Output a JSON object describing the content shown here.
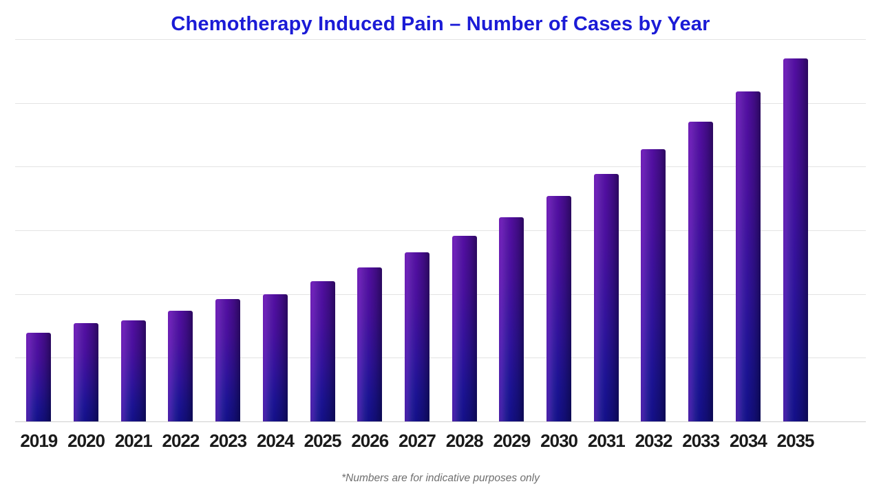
{
  "page": {
    "background_color": "#ffffff"
  },
  "header": {
    "title": "Chemotherapy Induced Pain – Number of Cases by Year",
    "title_color": "#1b1bd6"
  },
  "footnote": {
    "text": "*Numbers are for indicative purposes only",
    "color": "#6e6e6e"
  },
  "chart_data": {
    "type": "bar",
    "title": "Chemotherapy Induced Pain – Number of Cases by Year",
    "categories": [
      "2019",
      "2020",
      "2021",
      "2022",
      "2023",
      "2024",
      "2025",
      "2026",
      "2027",
      "2028",
      "2029",
      "2030",
      "2031",
      "2032",
      "2033",
      "2034",
      "2035"
    ],
    "values": [
      139,
      154,
      159,
      174,
      192,
      200,
      220,
      242,
      265,
      291,
      320,
      354,
      389,
      427,
      470,
      518,
      570
    ],
    "xlabel": "",
    "ylabel": "",
    "ylim": [
      0,
      600
    ],
    "gridline_step": 100,
    "grid": "horizontal-only",
    "y_axis_labels_visible": false,
    "legend": "none",
    "value_scale_note": "y-axis unlabeled in image; values estimated with one gridline interval = 100 units",
    "colors": {
      "bar_gradient_top": "#540fa2",
      "bar_gradient_bottom": "#141089",
      "gridline": "#e3e3e3",
      "axis_baseline": "#cfcfcf",
      "x_tick_label": "#1a1a1a"
    }
  }
}
